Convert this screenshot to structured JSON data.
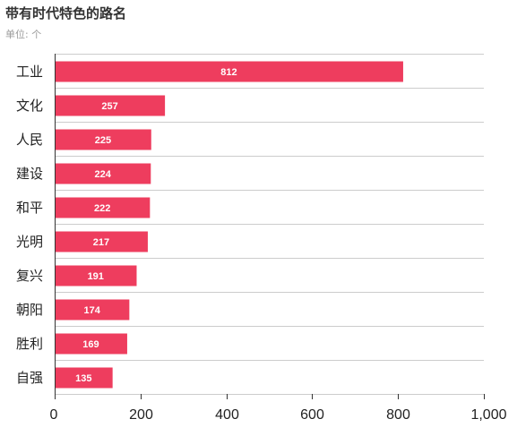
{
  "chart_data": {
    "type": "bar",
    "orientation": "horizontal",
    "title": "带有时代特色的路名",
    "subtitle": "单位: 个",
    "categories": [
      "工业",
      "文化",
      "人民",
      "建设",
      "和平",
      "光明",
      "复兴",
      "朝阳",
      "胜利",
      "自强"
    ],
    "values": [
      812,
      257,
      225,
      224,
      222,
      217,
      191,
      174,
      169,
      135
    ],
    "xlim": [
      0,
      1000
    ],
    "xticks": [
      "0",
      "200",
      "400",
      "600",
      "800",
      "1,000"
    ],
    "grid": "horizontal separators between categories",
    "bar_color": "#ee3d5e",
    "data_labels": true
  }
}
